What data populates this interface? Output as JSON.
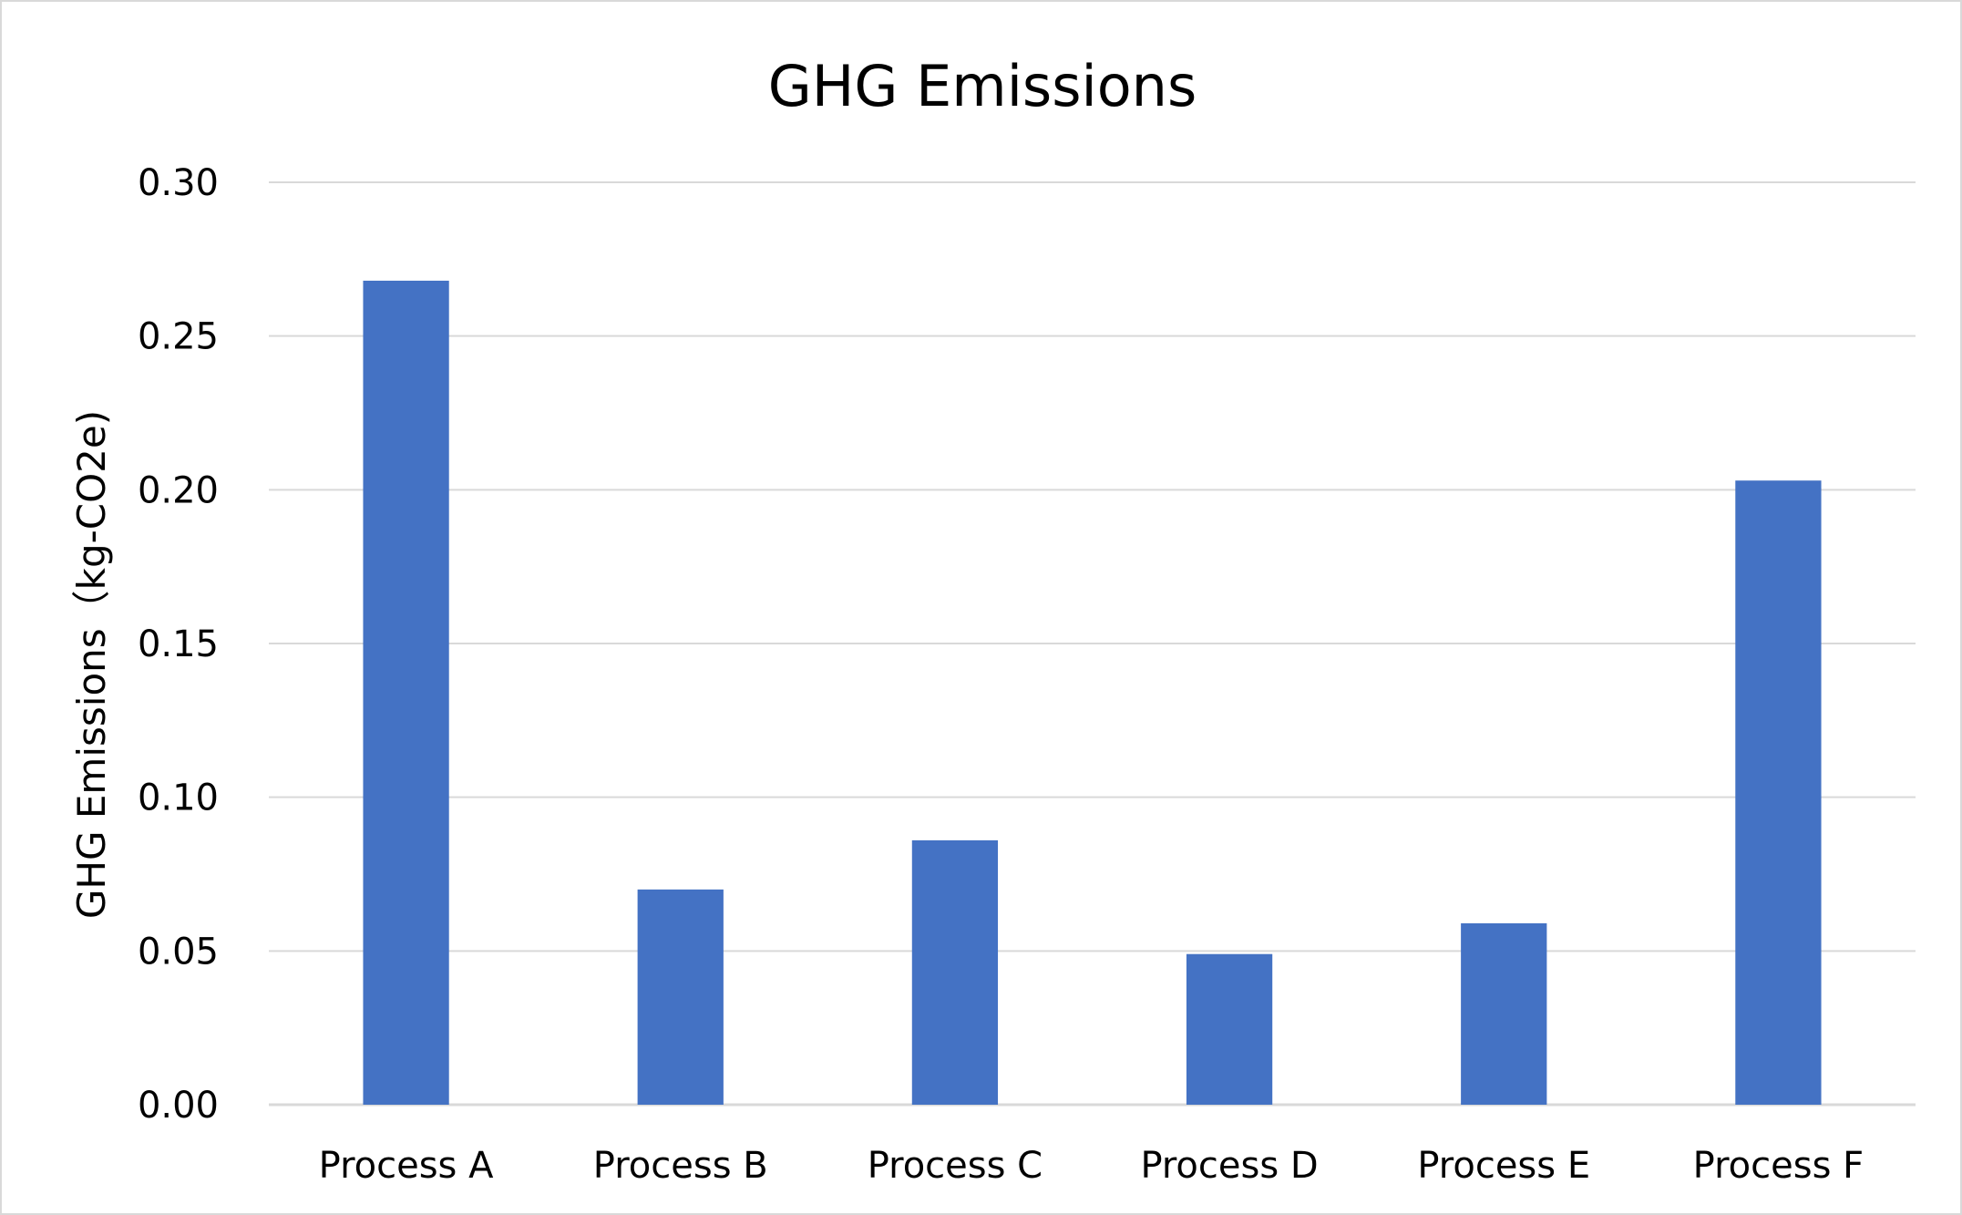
{
  "chart_data": {
    "type": "bar",
    "title": "GHG Emissions",
    "xlabel": "",
    "ylabel": "GHG Emissions（kg-CO2e)",
    "categories": [
      "Process A",
      "Process B",
      "Process C",
      "Process D",
      "Process E",
      "Process F"
    ],
    "series": [
      {
        "values": [
          0.268,
          0.07,
          0.086,
          0.049,
          0.059,
          0.203
        ],
        "color": "#4472c4"
      }
    ],
    "ylim": [
      0,
      0.3
    ],
    "yticks": [
      "0.00",
      "0.05",
      "0.10",
      "0.15",
      "0.20",
      "0.25",
      "0.30"
    ],
    "grid": true,
    "legend": "none"
  },
  "colors": {
    "bar": "#4472c4",
    "gridline": "#d9d9d9",
    "frame": "#d9d9d9"
  }
}
